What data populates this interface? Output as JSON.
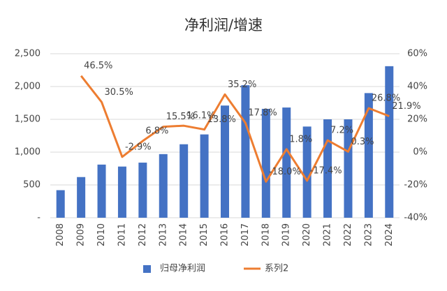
{
  "chart_data": {
    "type": "bar_line",
    "title": "净利润/增速",
    "categories": [
      "2008",
      "2009",
      "2010",
      "2011",
      "2012",
      "2013",
      "2014",
      "2015",
      "2016",
      "2017",
      "2018",
      "2019",
      "2020",
      "2021",
      "2022",
      "2023",
      "2024"
    ],
    "series": [
      {
        "name": "归母净利润",
        "type": "bar",
        "color": "#4472c4",
        "values": [
          420,
          620,
          810,
          780,
          840,
          970,
          1120,
          1270,
          1710,
          2020,
          1660,
          1680,
          1390,
          1500,
          1500,
          1900,
          2310
        ]
      },
      {
        "name": "系列2",
        "type": "line",
        "axis": "y2",
        "color": "#ed7d31",
        "values": [
          null,
          46.5,
          30.5,
          -2.9,
          6.8,
          15.5,
          16.1,
          13.8,
          35.2,
          17.8,
          -18.0,
          1.8,
          -17.4,
          7.2,
          0.3,
          26.8,
          21.9
        ],
        "value_labels": [
          null,
          "46.5%",
          "30.5%",
          "-2.9%",
          "6.8%",
          "15.5%",
          "16.1%",
          "13.8%",
          "35.2%",
          "17.8%",
          "-18.0%",
          "1.8%",
          "-17.4%",
          "7.2%",
          "0.3%",
          "26.8%",
          "21.9%"
        ]
      }
    ],
    "ylim": [
      0,
      2500
    ],
    "yticks": [
      {
        "value": 0,
        "label": "-"
      },
      500,
      {
        "value": 1000,
        "label": "1,000"
      },
      {
        "value": 1500,
        "label": "1,500"
      },
      {
        "value": 2000,
        "label": "2,000"
      },
      {
        "value": 2500,
        "label": "2,500"
      }
    ],
    "y2lim": [
      -40,
      60
    ],
    "y2ticks": [
      {
        "value": -40,
        "label": "-40%"
      },
      {
        "value": -20,
        "label": "-20%"
      },
      {
        "value": 0,
        "label": "0%"
      },
      {
        "value": 20,
        "label": "20%"
      },
      {
        "value": 40,
        "label": "40%"
      },
      {
        "value": 60,
        "label": "60%"
      }
    ],
    "legend": "bottom"
  }
}
